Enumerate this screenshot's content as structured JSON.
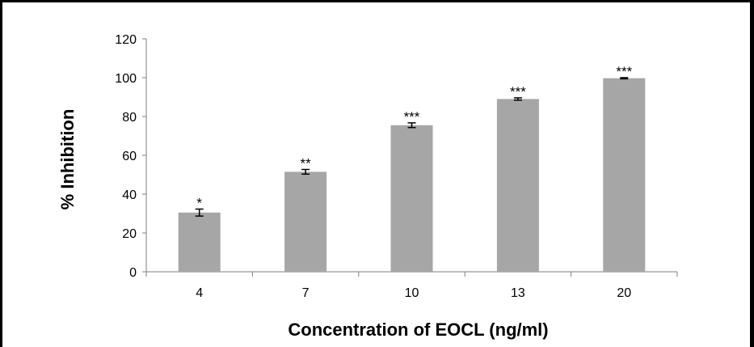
{
  "chart_data": {
    "type": "bar",
    "title": "",
    "xlabel": "Concentration of  EOCL  (ng/ml)",
    "ylabel": "% Inhibition",
    "categories": [
      "4",
      "7",
      "10",
      "13",
      "20"
    ],
    "values": [
      30.5,
      51.5,
      75.5,
      89,
      99.7
    ],
    "errors": [
      1.8,
      1.2,
      1.2,
      0.6,
      0.3
    ],
    "significance": [
      "*",
      "**",
      "***",
      "***",
      "***"
    ],
    "ylim": [
      0,
      120
    ],
    "yticks": [
      "0",
      "20",
      "40",
      "60",
      "80",
      "100",
      "120"
    ],
    "grid": false,
    "legend": "none",
    "colors": {
      "bar": "#a6a6a6",
      "axis": "#808080",
      "text": "#000000",
      "error_bar": "#000000"
    }
  }
}
